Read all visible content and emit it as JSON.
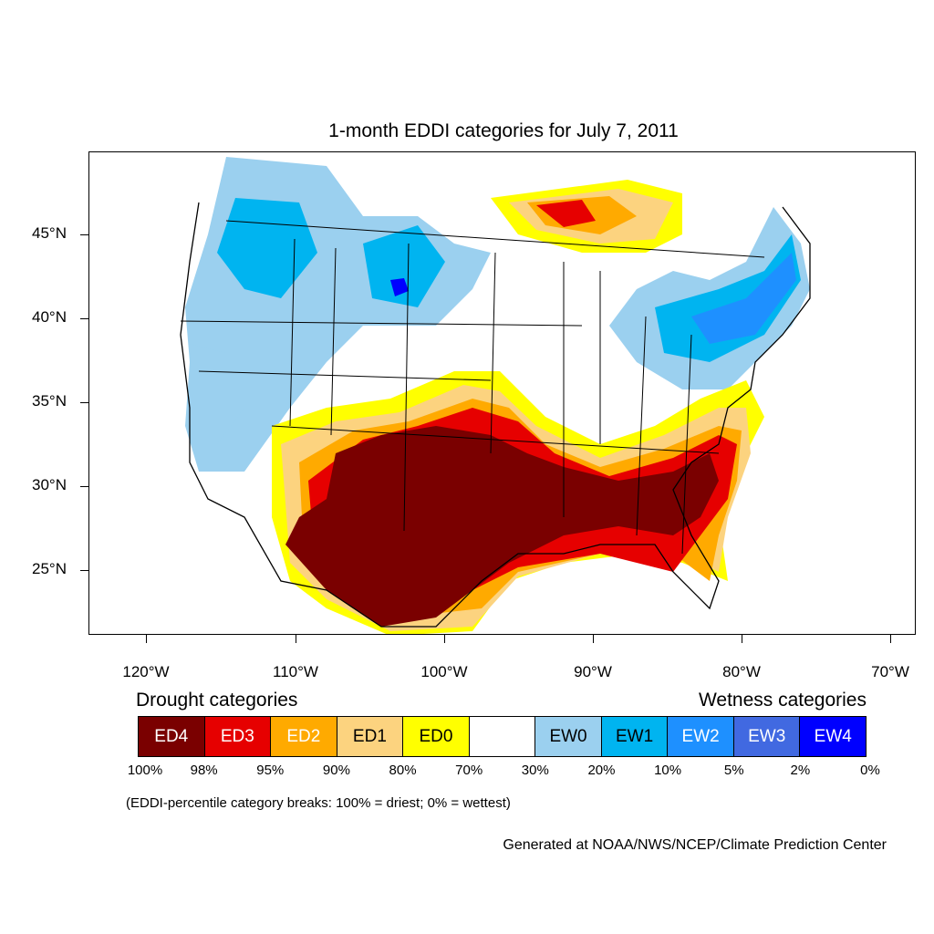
{
  "title": "1-month EDDI categories for July 7, 2011",
  "latitude_labels": [
    "45°N",
    "40°N",
    "35°N",
    "30°N",
    "25°N"
  ],
  "longitude_labels": [
    "120°W",
    "110°W",
    "100°W",
    "90°W",
    "80°W",
    "70°W"
  ],
  "legend": {
    "drought_heading": "Drought categories",
    "wetness_heading": "Wetness categories",
    "categories": [
      {
        "label": "ED4",
        "color": "#7a0000",
        "text_color": "#ffffff"
      },
      {
        "label": "ED3",
        "color": "#e60000",
        "text_color": "#ffffff"
      },
      {
        "label": "ED2",
        "color": "#ffaa00",
        "text_color": "#ffffff"
      },
      {
        "label": "ED1",
        "color": "#fcd37f",
        "text_color": "#000000"
      },
      {
        "label": "ED0",
        "color": "#ffff00",
        "text_color": "#000000"
      },
      {
        "label": "",
        "color": "#ffffff",
        "text_color": "#000000"
      },
      {
        "label": "EW0",
        "color": "#9bd0ef",
        "text_color": "#000000"
      },
      {
        "label": "EW1",
        "color": "#00b4f0",
        "text_color": "#000000"
      },
      {
        "label": "EW2",
        "color": "#1e90ff",
        "text_color": "#ffffff"
      },
      {
        "label": "EW3",
        "color": "#4169e1",
        "text_color": "#ffffff"
      },
      {
        "label": "EW4",
        "color": "#0000ff",
        "text_color": "#ffffff"
      }
    ],
    "breaks": [
      "100%",
      "98%",
      "95%",
      "90%",
      "80%",
      "70%",
      "30%",
      "20%",
      "10%",
      "5%",
      "2%",
      "0%"
    ]
  },
  "footnote": "(EDDI-percentile category breaks: 100% = driest; 0% = wettest)",
  "credit": "Generated at NOAA/NWS/NCEP/Climate Prediction Center"
}
